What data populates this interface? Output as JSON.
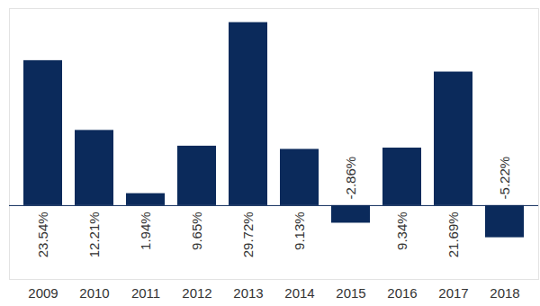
{
  "chart_data": {
    "type": "bar",
    "categories": [
      "2009",
      "2010",
      "2011",
      "2012",
      "2013",
      "2014",
      "2015",
      "2016",
      "2017",
      "2018"
    ],
    "values": [
      23.54,
      12.21,
      1.94,
      9.65,
      29.72,
      9.13,
      -2.86,
      9.34,
      21.69,
      -5.22
    ],
    "value_labels": [
      "23.54%",
      "12.21%",
      "1.94%",
      "9.65%",
      "29.72%",
      "9.13%",
      "-2.86%",
      "9.34%",
      "21.69%",
      "-5.22%"
    ],
    "color": "#0b2a5b",
    "ylim": [
      -12,
      32
    ],
    "data_labels": true,
    "tick_labels": "x"
  }
}
